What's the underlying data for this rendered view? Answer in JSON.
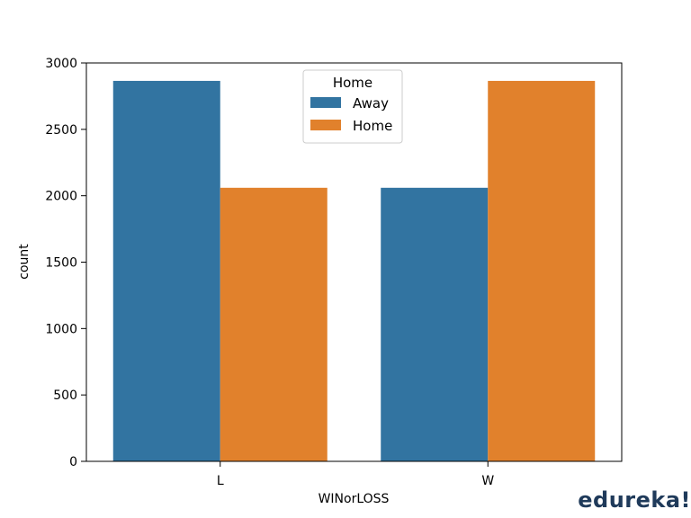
{
  "chart_data": {
    "type": "bar",
    "categories": [
      "L",
      "W"
    ],
    "series": [
      {
        "name": "Away",
        "values": [
          2865,
          2060
        ],
        "color": "#3274a1"
      },
      {
        "name": "Home",
        "values": [
          2060,
          2865
        ],
        "color": "#e1812c"
      }
    ],
    "xlabel": "WINorLOSS",
    "ylabel": "count",
    "ylim": [
      0,
      3000
    ],
    "yticks": [
      0,
      500,
      1000,
      1500,
      2000,
      2500,
      3000
    ],
    "yticklabels": [
      "0",
      "500",
      "1000",
      "1500",
      "2000",
      "2500",
      "3000"
    ],
    "legend": {
      "title": "Home",
      "placement": "top-center"
    },
    "grid": false
  },
  "watermark": "edureka!"
}
